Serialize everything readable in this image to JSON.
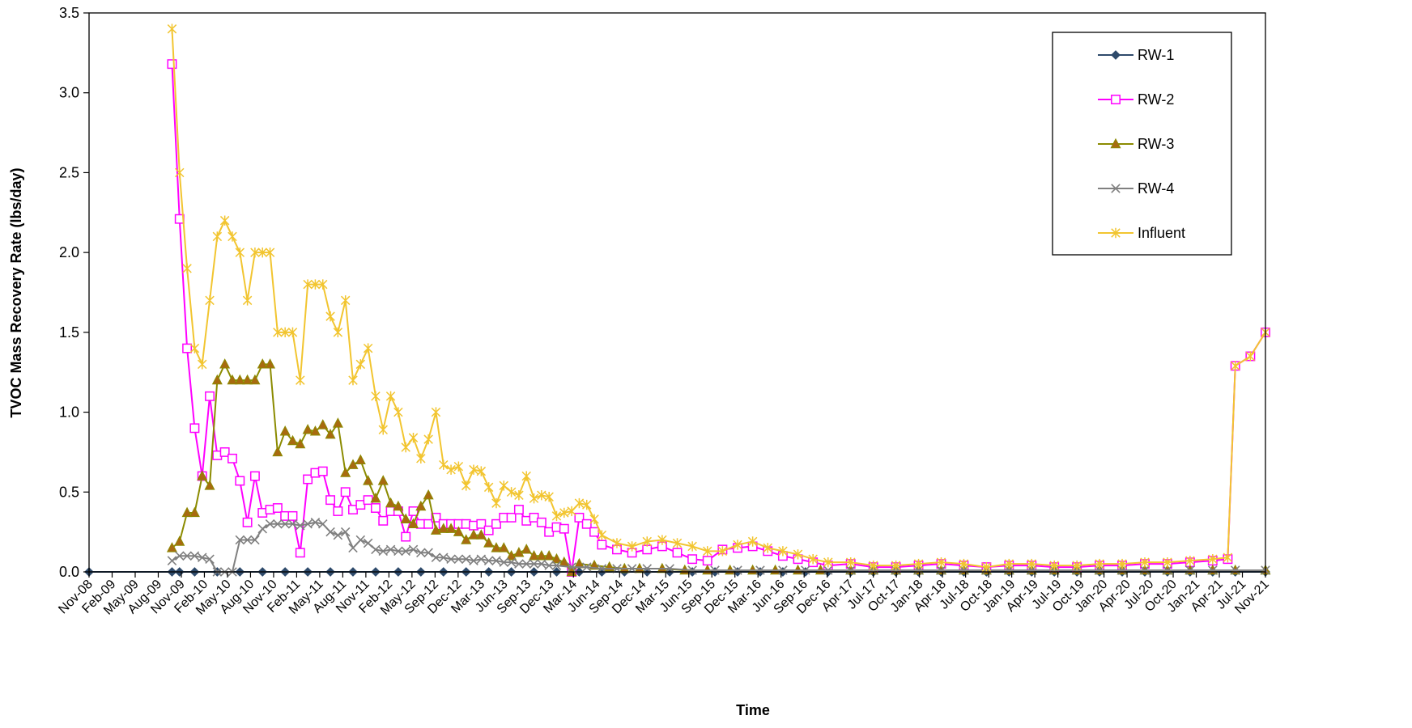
{
  "chart_data": {
    "type": "line",
    "title": "",
    "xlabel": "Time",
    "ylabel": "TVOC Mass Recovery Rate (lbs/day)",
    "ylim": [
      0,
      3.5
    ],
    "yticks": [
      0.0,
      0.5,
      1.0,
      1.5,
      2.0,
      2.5,
      3.0,
      3.5
    ],
    "ytick_labels": [
      "0.0",
      "0.5",
      "1.0",
      "1.5",
      "2.0",
      "2.5",
      "3.0",
      "3.5"
    ],
    "xlim": [
      "2008-11",
      "2021-11"
    ],
    "xtick_labels": [
      "Nov-08",
      "Feb-09",
      "May-09",
      "Aug-09",
      "Nov-09",
      "Feb-10",
      "May-10",
      "Aug-10",
      "Nov-10",
      "Feb-11",
      "May-11",
      "Aug-11",
      "Nov-11",
      "Feb-12",
      "May-12",
      "Sep-12",
      "Dec-12",
      "Mar-13",
      "Jun-13",
      "Sep-13",
      "Dec-13",
      "Mar-14",
      "Jun-14",
      "Sep-14",
      "Dec-14",
      "Mar-15",
      "Jun-15",
      "Sep-15",
      "Dec-15",
      "Mar-16",
      "Jun-16",
      "Sep-16",
      "Dec-16",
      "Apr-17",
      "Jul-17",
      "Oct-17",
      "Jan-18",
      "Apr-18",
      "Jul-18",
      "Oct-18",
      "Jan-19",
      "Apr-19",
      "Jul-19",
      "Oct-19",
      "Jan-20",
      "Apr-20",
      "Jul-20",
      "Oct-20",
      "Jan-21",
      "Apr-21",
      "Jul-21",
      "Nov-21"
    ],
    "grid": false,
    "legend_position": "top-right",
    "series": [
      {
        "name": "RW-1",
        "color": "#2E4A6B",
        "marker": "diamond",
        "x": [
          "2008-11",
          "2009-10",
          "2009-11",
          "2010-01",
          "2010-04",
          "2010-07",
          "2010-10",
          "2011-01",
          "2011-04",
          "2011-07",
          "2011-10",
          "2012-01",
          "2012-04",
          "2012-07",
          "2012-10",
          "2013-01",
          "2013-04",
          "2013-07",
          "2013-10",
          "2014-01",
          "2014-04",
          "2014-07",
          "2014-10",
          "2015-01",
          "2015-04",
          "2015-07",
          "2015-10",
          "2016-01",
          "2016-04",
          "2016-07",
          "2016-10",
          "2017-01",
          "2017-04",
          "2017-07",
          "2017-10",
          "2018-01",
          "2018-04",
          "2018-07",
          "2018-10",
          "2019-01",
          "2019-04",
          "2019-07",
          "2019-10",
          "2020-01",
          "2020-04",
          "2020-07",
          "2020-10",
          "2021-01",
          "2021-04",
          "2021-07",
          "2021-11"
        ],
        "y": [
          0,
          0,
          0,
          0,
          0,
          0,
          0,
          0,
          0,
          0,
          0,
          0,
          0,
          0,
          0,
          0,
          0,
          0,
          0,
          0,
          0,
          0,
          0,
          0,
          0,
          0,
          0,
          0,
          0,
          0,
          0,
          0,
          0,
          0,
          0,
          0,
          0,
          0,
          0,
          0,
          0,
          0,
          0,
          0,
          0,
          0,
          0,
          0,
          0,
          0,
          0
        ]
      },
      {
        "name": "RW-2",
        "color": "#FF00FF",
        "marker": "open-square",
        "x": [
          "2009-10",
          "2009-11",
          "2009-12",
          "2010-01",
          "2010-02",
          "2010-03",
          "2010-04",
          "2010-05",
          "2010-06",
          "2010-07",
          "2010-08",
          "2010-09",
          "2010-10",
          "2010-11",
          "2010-12",
          "2011-01",
          "2011-02",
          "2011-03",
          "2011-04",
          "2011-05",
          "2011-06",
          "2011-07",
          "2011-08",
          "2011-09",
          "2011-10",
          "2011-11",
          "2011-12",
          "2012-01",
          "2012-02",
          "2012-03",
          "2012-04",
          "2012-05",
          "2012-06",
          "2012-07",
          "2012-08",
          "2012-09",
          "2012-10",
          "2012-11",
          "2012-12",
          "2013-01",
          "2013-02",
          "2013-03",
          "2013-04",
          "2013-05",
          "2013-06",
          "2013-07",
          "2013-08",
          "2013-09",
          "2013-10",
          "2013-11",
          "2013-12",
          "2014-01",
          "2014-02",
          "2014-03",
          "2014-04",
          "2014-05",
          "2014-06",
          "2014-07",
          "2014-09",
          "2014-11",
          "2015-01",
          "2015-03",
          "2015-05",
          "2015-07",
          "2015-09",
          "2015-11",
          "2016-01",
          "2016-03",
          "2016-05",
          "2016-07",
          "2016-09",
          "2016-11",
          "2017-01",
          "2017-04",
          "2017-07",
          "2017-10",
          "2018-01",
          "2018-04",
          "2018-07",
          "2018-10",
          "2019-01",
          "2019-04",
          "2019-07",
          "2019-10",
          "2020-01",
          "2020-04",
          "2020-07",
          "2020-10",
          "2021-01",
          "2021-04",
          "2021-06",
          "2021-07",
          "2021-09",
          "2021-11"
        ],
        "y": [
          3.18,
          2.21,
          1.4,
          0.9,
          0.6,
          1.1,
          0.73,
          0.75,
          0.71,
          0.57,
          0.31,
          0.6,
          0.37,
          0.39,
          0.4,
          0.35,
          0.35,
          0.12,
          0.58,
          0.62,
          0.63,
          0.45,
          0.38,
          0.5,
          0.39,
          0.42,
          0.45,
          0.4,
          0.32,
          0.38,
          0.38,
          0.22,
          0.38,
          0.3,
          0.3,
          0.34,
          0.3,
          0.3,
          0.3,
          0.3,
          0.29,
          0.3,
          0.26,
          0.3,
          0.34,
          0.34,
          0.39,
          0.32,
          0.34,
          0.31,
          0.25,
          0.28,
          0.27,
          0.0,
          0.34,
          0.3,
          0.25,
          0.17,
          0.14,
          0.12,
          0.14,
          0.16,
          0.12,
          0.08,
          0.07,
          0.14,
          0.15,
          0.16,
          0.13,
          0.1,
          0.08,
          0.06,
          0.04,
          0.05,
          0.03,
          0.03,
          0.04,
          0.05,
          0.04,
          0.03,
          0.04,
          0.04,
          0.03,
          0.03,
          0.04,
          0.04,
          0.05,
          0.05,
          0.06,
          0.07,
          0.08,
          1.29,
          1.35,
          1.5
        ]
      },
      {
        "name": "RW-3",
        "color": "#8B8B00",
        "marker": "filled-triangle",
        "x": [
          "2009-10",
          "2009-11",
          "2009-12",
          "2010-01",
          "2010-02",
          "2010-03",
          "2010-04",
          "2010-05",
          "2010-06",
          "2010-07",
          "2010-08",
          "2010-09",
          "2010-10",
          "2010-11",
          "2010-12",
          "2011-01",
          "2011-02",
          "2011-03",
          "2011-04",
          "2011-05",
          "2011-06",
          "2011-07",
          "2011-08",
          "2011-09",
          "2011-10",
          "2011-11",
          "2011-12",
          "2012-01",
          "2012-02",
          "2012-03",
          "2012-04",
          "2012-05",
          "2012-06",
          "2012-07",
          "2012-08",
          "2012-09",
          "2012-10",
          "2012-11",
          "2012-12",
          "2013-01",
          "2013-02",
          "2013-03",
          "2013-04",
          "2013-05",
          "2013-06",
          "2013-07",
          "2013-08",
          "2013-09",
          "2013-10",
          "2013-11",
          "2013-12",
          "2014-01",
          "2014-02",
          "2014-03",
          "2014-04",
          "2014-06",
          "2014-08",
          "2014-10",
          "2014-12",
          "2015-03",
          "2015-06",
          "2015-09",
          "2015-12",
          "2016-03",
          "2016-06",
          "2016-09",
          "2016-12",
          "2017-04",
          "2017-07",
          "2017-10",
          "2018-01",
          "2018-04",
          "2018-07",
          "2018-10",
          "2019-01",
          "2019-04",
          "2019-07",
          "2019-10",
          "2020-01",
          "2020-04",
          "2020-07",
          "2020-10",
          "2021-01",
          "2021-04",
          "2021-07",
          "2021-11"
        ],
        "y": [
          0.15,
          0.19,
          0.37,
          0.37,
          0.6,
          0.54,
          1.2,
          1.3,
          1.2,
          1.2,
          1.2,
          1.2,
          1.3,
          1.3,
          0.75,
          0.88,
          0.82,
          0.8,
          0.89,
          0.88,
          0.92,
          0.86,
          0.93,
          0.62,
          0.67,
          0.7,
          0.57,
          0.46,
          0.57,
          0.43,
          0.41,
          0.33,
          0.3,
          0.41,
          0.48,
          0.26,
          0.27,
          0.27,
          0.25,
          0.2,
          0.23,
          0.23,
          0.18,
          0.15,
          0.15,
          0.1,
          0.12,
          0.14,
          0.1,
          0.1,
          0.1,
          0.08,
          0.06,
          0.0,
          0.05,
          0.04,
          0.03,
          0.02,
          0.02,
          0.02,
          0.01,
          0.01,
          0.01,
          0.01,
          0.01,
          0.01,
          0.01,
          0.01,
          0.01,
          0.01,
          0.01,
          0.01,
          0.01,
          0.01,
          0.01,
          0.01,
          0.01,
          0.01,
          0.01,
          0.01,
          0.01,
          0.01,
          0.01,
          0.01,
          0.01,
          0.01
        ]
      },
      {
        "name": "RW-4",
        "color": "#808080",
        "marker": "x",
        "x": [
          "2009-10",
          "2009-11",
          "2009-12",
          "2010-01",
          "2010-02",
          "2010-03",
          "2010-04",
          "2010-05",
          "2010-06",
          "2010-07",
          "2010-08",
          "2010-09",
          "2010-10",
          "2010-11",
          "2010-12",
          "2011-01",
          "2011-02",
          "2011-03",
          "2011-04",
          "2011-05",
          "2011-06",
          "2011-07",
          "2011-08",
          "2011-09",
          "2011-10",
          "2011-11",
          "2011-12",
          "2012-01",
          "2012-02",
          "2012-03",
          "2012-04",
          "2012-05",
          "2012-06",
          "2012-07",
          "2012-08",
          "2012-09",
          "2012-10",
          "2012-11",
          "2012-12",
          "2013-01",
          "2013-02",
          "2013-03",
          "2013-04",
          "2013-05",
          "2013-06",
          "2013-07",
          "2013-08",
          "2013-09",
          "2013-10",
          "2013-11",
          "2013-12",
          "2014-01",
          "2014-03",
          "2014-05",
          "2014-07",
          "2014-09",
          "2014-11",
          "2015-01",
          "2015-04",
          "2015-07",
          "2015-10",
          "2016-01",
          "2016-04",
          "2016-07",
          "2016-10",
          "2017-01",
          "2017-04",
          "2017-07",
          "2017-10",
          "2018-01",
          "2018-04",
          "2018-07",
          "2018-10",
          "2019-01",
          "2019-04",
          "2019-07",
          "2019-10",
          "2020-01",
          "2020-04",
          "2020-07",
          "2020-10",
          "2021-01",
          "2021-04",
          "2021-07",
          "2021-11"
        ],
        "y": [
          0.07,
          0.1,
          0.1,
          0.1,
          0.09,
          0.08,
          0.0,
          0.0,
          0.0,
          0.2,
          0.2,
          0.2,
          0.27,
          0.3,
          0.3,
          0.3,
          0.3,
          0.29,
          0.3,
          0.31,
          0.3,
          0.25,
          0.23,
          0.25,
          0.15,
          0.2,
          0.18,
          0.14,
          0.13,
          0.14,
          0.13,
          0.13,
          0.14,
          0.12,
          0.12,
          0.09,
          0.09,
          0.08,
          0.08,
          0.08,
          0.07,
          0.08,
          0.07,
          0.07,
          0.06,
          0.06,
          0.05,
          0.05,
          0.05,
          0.05,
          0.04,
          0.04,
          0.03,
          0.03,
          0.02,
          0.02,
          0.02,
          0.02,
          0.02,
          0.01,
          0.01,
          0.01,
          0.01,
          0.01,
          0.01,
          0.01,
          0.01,
          0.01,
          0.01,
          0.01,
          0.01,
          0.01,
          0.01,
          0.01,
          0.01,
          0.01,
          0.01,
          0.01,
          0.01,
          0.01,
          0.01,
          0.01,
          0.01,
          0.01,
          0.01
        ]
      },
      {
        "name": "Influent",
        "color": "#F2C530",
        "marker": "star",
        "x": [
          "2009-10",
          "2009-11",
          "2009-12",
          "2010-01",
          "2010-02",
          "2010-03",
          "2010-04",
          "2010-05",
          "2010-06",
          "2010-07",
          "2010-08",
          "2010-09",
          "2010-10",
          "2010-11",
          "2010-12",
          "2011-01",
          "2011-02",
          "2011-03",
          "2011-04",
          "2011-05",
          "2011-06",
          "2011-07",
          "2011-08",
          "2011-09",
          "2011-10",
          "2011-11",
          "2011-12",
          "2012-01",
          "2012-02",
          "2012-03",
          "2012-04",
          "2012-05",
          "2012-06",
          "2012-07",
          "2012-08",
          "2012-09",
          "2012-10",
          "2012-11",
          "2012-12",
          "2013-01",
          "2013-02",
          "2013-03",
          "2013-04",
          "2013-05",
          "2013-06",
          "2013-07",
          "2013-08",
          "2013-09",
          "2013-10",
          "2013-11",
          "2013-12",
          "2014-01",
          "2014-02",
          "2014-03",
          "2014-04",
          "2014-05",
          "2014-06",
          "2014-07",
          "2014-09",
          "2014-11",
          "2015-01",
          "2015-03",
          "2015-05",
          "2015-07",
          "2015-09",
          "2015-11",
          "2016-01",
          "2016-03",
          "2016-05",
          "2016-07",
          "2016-09",
          "2016-11",
          "2017-01",
          "2017-04",
          "2017-07",
          "2017-10",
          "2018-01",
          "2018-04",
          "2018-07",
          "2018-10",
          "2019-01",
          "2019-04",
          "2019-07",
          "2019-10",
          "2020-01",
          "2020-04",
          "2020-07",
          "2020-10",
          "2021-01",
          "2021-04",
          "2021-06",
          "2021-07",
          "2021-09",
          "2021-11"
        ],
        "y": [
          3.4,
          2.5,
          1.9,
          1.4,
          1.3,
          1.7,
          2.1,
          2.2,
          2.1,
          2.0,
          1.7,
          2.0,
          2.0,
          2.0,
          1.5,
          1.5,
          1.5,
          1.2,
          1.8,
          1.8,
          1.8,
          1.6,
          1.5,
          1.7,
          1.2,
          1.3,
          1.4,
          1.1,
          0.89,
          1.1,
          1.0,
          0.78,
          0.84,
          0.71,
          0.83,
          1.0,
          0.67,
          0.64,
          0.66,
          0.54,
          0.64,
          0.63,
          0.53,
          0.43,
          0.54,
          0.5,
          0.48,
          0.6,
          0.46,
          0.48,
          0.47,
          0.35,
          0.37,
          0.38,
          0.43,
          0.42,
          0.33,
          0.23,
          0.18,
          0.16,
          0.19,
          0.2,
          0.18,
          0.16,
          0.13,
          0.13,
          0.17,
          0.19,
          0.15,
          0.13,
          0.11,
          0.08,
          0.06,
          0.06,
          0.04,
          0.04,
          0.05,
          0.06,
          0.05,
          0.03,
          0.05,
          0.05,
          0.04,
          0.04,
          0.05,
          0.05,
          0.06,
          0.06,
          0.07,
          0.08,
          0.09,
          1.29,
          1.35,
          1.5
        ]
      }
    ]
  }
}
